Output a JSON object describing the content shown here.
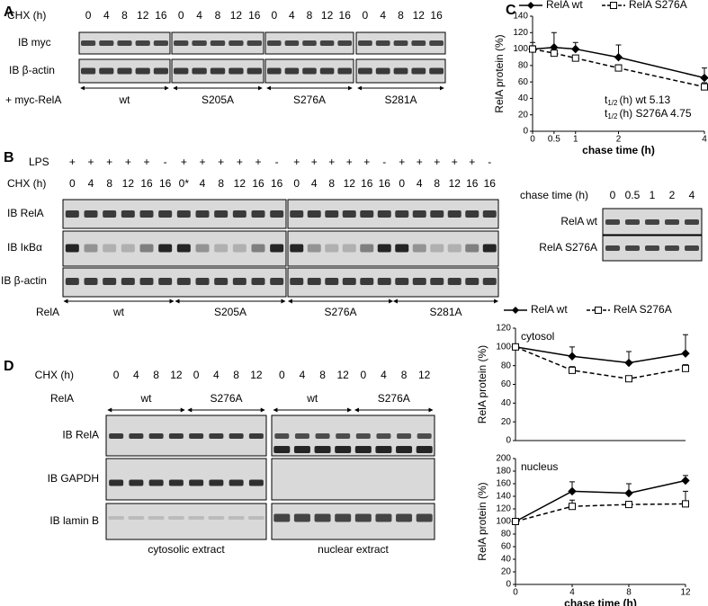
{
  "panel_a": {
    "label": "A",
    "chx_label": "CHX (h)",
    "chx": [
      "0",
      "4",
      "8",
      "12",
      "16",
      "0",
      "4",
      "8",
      "12",
      "16",
      "0",
      "4",
      "8",
      "12",
      "16",
      "0",
      "4",
      "8",
      "12",
      "16"
    ],
    "rows": [
      "IB myc",
      "IB β-actin"
    ],
    "construct_label": "+ myc-RelA",
    "groups": [
      "wt",
      "S205A",
      "S276A",
      "S281A"
    ]
  },
  "panel_b": {
    "label": "B",
    "lps_label": "LPS",
    "lps": [
      "+",
      "+",
      "+",
      "+",
      "+",
      "-",
      "+",
      "+",
      "+",
      "+",
      "+",
      "-",
      "+",
      "+",
      "+",
      "+",
      "+",
      "-",
      "+",
      "+",
      "+",
      "+",
      "+",
      "-"
    ],
    "chx_label": "CHX (h)",
    "chx": [
      "0",
      "4",
      "8",
      "12",
      "16",
      "16",
      "0*",
      "4",
      "8",
      "12",
      "16",
      "16",
      "0",
      "4",
      "8",
      "12",
      "16",
      "16",
      "0",
      "4",
      "8",
      "12",
      "16",
      "16"
    ],
    "rows": [
      "IB RelA",
      "IB IκBα",
      "IB β-actin"
    ],
    "construct_label": "RelA",
    "groups": [
      "wt",
      "S205A",
      "S276A",
      "S281A"
    ]
  },
  "panel_b_inset": {
    "chase_label": "chase time (h)",
    "chase": [
      "0",
      "0.5",
      "1",
      "2",
      "4"
    ],
    "rows": [
      "RelA wt",
      "RelA S276A"
    ]
  },
  "panel_c": {
    "label": "C"
  },
  "panel_d": {
    "label": "D",
    "chx_label": "CHX (h)",
    "chx": [
      "0",
      "4",
      "8",
      "12",
      "0",
      "4",
      "8",
      "12",
      "0",
      "4",
      "8",
      "12",
      "0",
      "4",
      "8",
      "12"
    ],
    "construct_label": "RelA",
    "groups": [
      "wt",
      "S276A",
      "wt",
      "S276A"
    ],
    "rows": [
      "IB RelA",
      "IB GAPDH",
      "IB lamin B"
    ],
    "extracts": [
      "cytosolic extract",
      "nuclear extract"
    ]
  },
  "chart_data": [
    {
      "type": "line",
      "x": [
        0,
        0.5,
        1,
        2,
        4
      ],
      "xlim": [
        0,
        4
      ],
      "xticks": [
        0,
        0.5,
        1,
        2,
        4
      ],
      "ylim": [
        0,
        140
      ],
      "yticks": [
        0,
        20,
        40,
        60,
        80,
        100,
        120,
        140
      ],
      "xlabel": "chase time (h)",
      "ylabel": "RelA protein (%)",
      "legend": "top",
      "half_lives": [
        {
          "symbol": "t",
          "sub": "1/2",
          "text": "(h) wt 5.13"
        },
        {
          "symbol": "t",
          "sub": "1/2",
          "text": "(h) S276A 4.75"
        }
      ],
      "series": [
        {
          "name": "RelA wt",
          "color": "#000000",
          "marker": "diamond",
          "dashed": false,
          "values": [
            100,
            102,
            100,
            90,
            65
          ],
          "errors": [
            8,
            18,
            8,
            15,
            12
          ]
        },
        {
          "name": "RelA S276A",
          "color": "#000000",
          "marker": "square",
          "dashed": true,
          "values": [
            100,
            95,
            89,
            77,
            54
          ],
          "errors": [
            4,
            3,
            3,
            4,
            5
          ]
        }
      ]
    },
    {
      "type": "line",
      "x": [
        0,
        4,
        8,
        12
      ],
      "xlim": [
        0,
        12
      ],
      "ylim": [
        0,
        120
      ],
      "yticks": [
        0,
        20,
        40,
        60,
        80,
        100,
        120
      ],
      "ylabel": "RelA protein (%)",
      "annotation": "cytosol",
      "legend": "top",
      "series": [
        {
          "name": "RelA wt",
          "color": "#000000",
          "marker": "diamond",
          "dashed": false,
          "values": [
            100,
            90,
            83,
            93
          ],
          "errors": [
            3,
            10,
            12,
            20
          ]
        },
        {
          "name": "RelA S276A",
          "color": "#000000",
          "marker": "square",
          "dashed": true,
          "values": [
            100,
            75,
            66,
            77
          ],
          "errors": [
            2,
            4,
            3,
            4
          ]
        }
      ]
    },
    {
      "type": "line",
      "x": [
        0,
        4,
        8,
        12
      ],
      "xlim": [
        0,
        12
      ],
      "xticks": [
        0,
        4,
        8,
        12
      ],
      "ylim": [
        0,
        200
      ],
      "yticks": [
        0,
        20,
        40,
        60,
        80,
        100,
        120,
        140,
        160,
        180,
        200
      ],
      "xlabel": "chase time (h)",
      "ylabel": "RelA protein (%)",
      "annotation": "nucleus",
      "series": [
        {
          "color": "#000000",
          "marker": "diamond",
          "dashed": false,
          "values": [
            100,
            148,
            145,
            165
          ],
          "errors": [
            3,
            15,
            15,
            8
          ]
        },
        {
          "color": "#000000",
          "marker": "square",
          "dashed": true,
          "values": [
            100,
            124,
            127,
            128
          ],
          "errors": [
            3,
            10,
            5,
            20
          ]
        }
      ]
    }
  ]
}
